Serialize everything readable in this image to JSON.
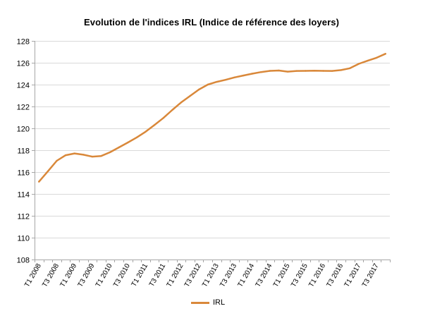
{
  "colors": {
    "series": "#D9883A",
    "grid": "#D9D9D9",
    "axis": "#A6A6A6",
    "text": "#000000"
  },
  "chart_data": {
    "type": "line",
    "title": "Evolution de l'indices IRL (Indice de référence des loyers)",
    "xlabel": "",
    "ylabel": "",
    "ylim": [
      108,
      128
    ],
    "ytick_step": 2,
    "yticks": [
      "108",
      "110",
      "112",
      "114",
      "116",
      "118",
      "120",
      "122",
      "124",
      "126",
      "128"
    ],
    "grid": true,
    "legend_position": "bottom",
    "categories": [
      "T1 2008",
      "T2 2008",
      "T3 2008",
      "T4 2008",
      "T1 2009",
      "T2 2009",
      "T3 2009",
      "T4 2009",
      "T1 2010",
      "T2 2010",
      "T3 2010",
      "T4 2010",
      "T1 2011",
      "T2 2011",
      "T3 2011",
      "T4 2011",
      "T1 2012",
      "T2 2012",
      "T3 2012",
      "T4 2012",
      "T1 2013",
      "T2 2013",
      "T3 2013",
      "T4 2013",
      "T1 2014",
      "T2 2014",
      "T3 2014",
      "T4 2014",
      "T1 2015",
      "T2 2015",
      "T3 2015",
      "T4 2015",
      "T1 2016",
      "T2 2016",
      "T3 2016",
      "T4 2016",
      "T1 2017",
      "T2 2017",
      "T3 2017",
      "T4 2017"
    ],
    "tick_labels": [
      "T1 2008",
      "T3 2008",
      "T1 2009",
      "T3 2009",
      "T1 2010",
      "T3 2010",
      "T1 2011",
      "T3 2011",
      "T1 2012",
      "T3 2012",
      "T1 2013",
      "T3 2013",
      "T1 2014",
      "T3 2014",
      "T1 2015",
      "T3 2015",
      "T1 2016",
      "T3 2016",
      "T1 2017",
      "T3 2017"
    ],
    "series": [
      {
        "name": "IRL",
        "values": [
          115.12,
          116.07,
          117.03,
          117.54,
          117.7,
          117.59,
          117.41,
          117.47,
          117.81,
          118.26,
          118.7,
          119.17,
          119.69,
          120.31,
          120.95,
          121.68,
          122.37,
          122.96,
          123.55,
          124.0,
          124.25,
          124.44,
          124.66,
          124.83,
          125.0,
          125.15,
          125.26,
          125.29,
          125.19,
          125.25,
          125.26,
          125.28,
          125.26,
          125.25,
          125.33,
          125.5,
          125.9,
          126.19,
          126.46,
          126.82
        ]
      }
    ]
  }
}
